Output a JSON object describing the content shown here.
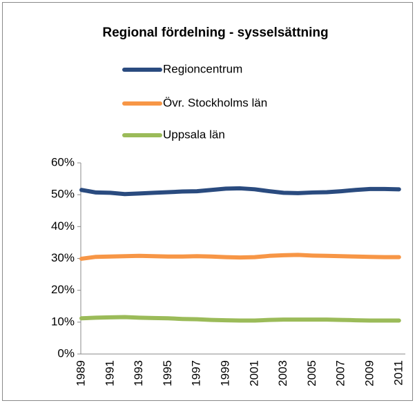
{
  "chart_data": {
    "type": "line",
    "title": "Regional fördelning - sysselsättning",
    "categories": [
      "1989",
      null,
      "1991",
      null,
      "1993",
      null,
      "1995",
      null,
      "1997",
      null,
      "1999",
      null,
      "2001",
      null,
      "2003",
      null,
      "2005",
      null,
      "2007",
      null,
      "2009",
      null,
      "2011"
    ],
    "series": [
      {
        "name": "Regioncentrum",
        "color": "#2a4b7f",
        "values": [
          51.5,
          50.7,
          50.6,
          50.2,
          50.4,
          50.6,
          50.8,
          51.0,
          51.1,
          51.5,
          51.9,
          52.0,
          51.7,
          51.1,
          50.6,
          50.5,
          50.7,
          50.8,
          51.1,
          51.5,
          51.8,
          51.8,
          51.7
        ]
      },
      {
        "name": "Övr. Stockholms län",
        "color": "#f79646",
        "values": [
          29.9,
          30.5,
          30.6,
          30.7,
          30.8,
          30.7,
          30.6,
          30.6,
          30.7,
          30.6,
          30.4,
          30.3,
          30.4,
          30.8,
          31.0,
          31.1,
          30.9,
          30.8,
          30.7,
          30.6,
          30.5,
          30.4,
          30.4
        ]
      },
      {
        "name": "Uppsala län",
        "color": "#9bbb59",
        "values": [
          11.2,
          11.4,
          11.5,
          11.6,
          11.4,
          11.3,
          11.2,
          11.0,
          10.9,
          10.7,
          10.6,
          10.5,
          10.5,
          10.7,
          10.8,
          10.8,
          10.8,
          10.8,
          10.7,
          10.6,
          10.5,
          10.5,
          10.5
        ]
      }
    ],
    "ylim": [
      0,
      60
    ],
    "yticks": [
      {
        "value": 0,
        "label": "0%"
      },
      {
        "value": 10,
        "label": "10%"
      },
      {
        "value": 20,
        "label": "20%"
      },
      {
        "value": 30,
        "label": "30%"
      },
      {
        "value": 40,
        "label": "40%"
      },
      {
        "value": 50,
        "label": "50%"
      },
      {
        "value": 60,
        "label": "60%"
      }
    ],
    "legend": "top",
    "grid": false
  }
}
